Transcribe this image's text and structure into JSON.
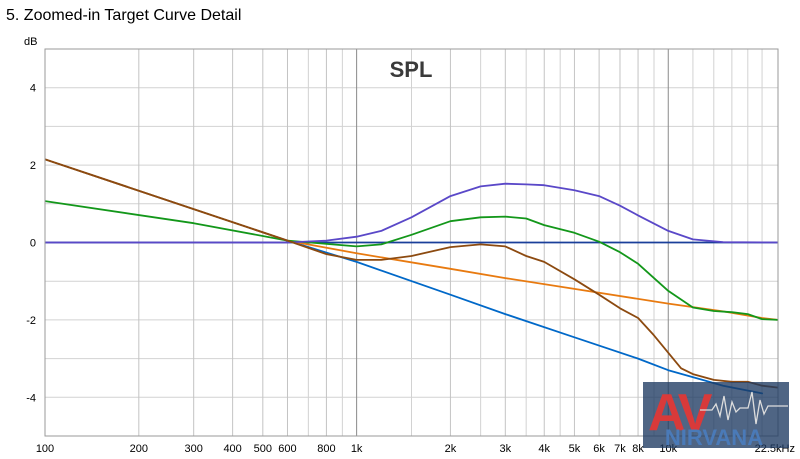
{
  "page": {
    "title": "5. Zoomed-in Target Curve Detail"
  },
  "chart_data": {
    "type": "line",
    "title": "SPL",
    "ylabel": "dB",
    "xlabel": "",
    "x_scale": "log",
    "xlim": [
      100,
      22500
    ],
    "ylim": [
      -5,
      5
    ],
    "grid": true,
    "y_ticks": [
      4,
      2,
      0,
      -2,
      -4
    ],
    "x_ticks": [
      {
        "value": 100,
        "label": "100"
      },
      {
        "value": 200,
        "label": "200"
      },
      {
        "value": 300,
        "label": "300"
      },
      {
        "value": 400,
        "label": "400"
      },
      {
        "value": 500,
        "label": "500"
      },
      {
        "value": 600,
        "label": "600"
      },
      {
        "value": 800,
        "label": "800"
      },
      {
        "value": 1000,
        "label": "1k"
      },
      {
        "value": 2000,
        "label": "2k"
      },
      {
        "value": 3000,
        "label": "3k"
      },
      {
        "value": 4000,
        "label": "4k"
      },
      {
        "value": 5000,
        "label": "5k"
      },
      {
        "value": 6000,
        "label": "6k"
      },
      {
        "value": 7000,
        "label": "7k"
      },
      {
        "value": 8000,
        "label": "8k"
      },
      {
        "value": 10000,
        "label": "10k"
      },
      {
        "value": 22500,
        "label": "22.5kHz"
      }
    ],
    "minor_grid_x": [
      700,
      900,
      1500,
      2500,
      3500,
      4500,
      9000,
      12000,
      14000,
      16000,
      18000,
      20000
    ],
    "series": [
      {
        "color": "#1a3f9a",
        "x": [
          100,
          22500
        ],
        "y": [
          0,
          0
        ]
      },
      {
        "color": "#0068c8",
        "x": [
          100,
          600,
          1000,
          2000,
          3000,
          5000,
          8000,
          10000,
          15000,
          20000
        ],
        "y": [
          2.15,
          0.05,
          -0.5,
          -1.35,
          -1.85,
          -2.45,
          -3.0,
          -3.3,
          -3.7,
          -3.9
        ]
      },
      {
        "color": "#e87a10",
        "x": [
          100,
          600,
          1000,
          2000,
          3000,
          5000,
          10000,
          15000,
          20000,
          22500
        ],
        "y": [
          2.15,
          0.05,
          -0.28,
          -0.68,
          -0.92,
          -1.2,
          -1.58,
          -1.78,
          -1.95,
          -2.0
        ]
      },
      {
        "color": "#13971a",
        "x": [
          100,
          300,
          600,
          1000,
          1200,
          1500,
          2000,
          2500,
          3000,
          3500,
          4000,
          5000,
          6000,
          7000,
          8000,
          10000,
          12000,
          14000,
          16000,
          18000,
          20000,
          22500
        ],
        "y": [
          1.07,
          0.5,
          0.05,
          -0.1,
          -0.05,
          0.2,
          0.55,
          0.65,
          0.67,
          0.62,
          0.45,
          0.25,
          0.02,
          -0.25,
          -0.55,
          -1.25,
          -1.68,
          -1.77,
          -1.8,
          -1.85,
          -1.98,
          -2.0
        ]
      },
      {
        "color": "#5a48c8",
        "x": [
          100,
          600,
          800,
          1000,
          1200,
          1500,
          2000,
          2500,
          3000,
          3500,
          4000,
          5000,
          6000,
          7000,
          8000,
          10000,
          12000,
          15000,
          22500
        ],
        "y": [
          0,
          0,
          0.05,
          0.15,
          0.3,
          0.65,
          1.2,
          1.45,
          1.52,
          1.5,
          1.48,
          1.35,
          1.2,
          0.95,
          0.7,
          0.3,
          0.08,
          0.01,
          0.0
        ]
      },
      {
        "color": "#8c4a10",
        "x": [
          100,
          600,
          800,
          1000,
          1200,
          1500,
          2000,
          2500,
          3000,
          3500,
          4000,
          5000,
          6000,
          7000,
          8000,
          9000,
          10000,
          11000,
          12000,
          14000,
          16000,
          18000,
          20000,
          22500
        ],
        "y": [
          2.15,
          0.05,
          -0.3,
          -0.45,
          -0.45,
          -0.35,
          -0.12,
          -0.05,
          -0.1,
          -0.35,
          -0.5,
          -0.95,
          -1.35,
          -1.7,
          -1.95,
          -2.4,
          -2.85,
          -3.25,
          -3.4,
          -3.55,
          -3.6,
          -3.6,
          -3.7,
          -3.75
        ]
      }
    ]
  },
  "watermark": {
    "letters": "AV",
    "name": "NIRVANA",
    "red": "#d83a3a",
    "blue": "#3a6aa8"
  }
}
